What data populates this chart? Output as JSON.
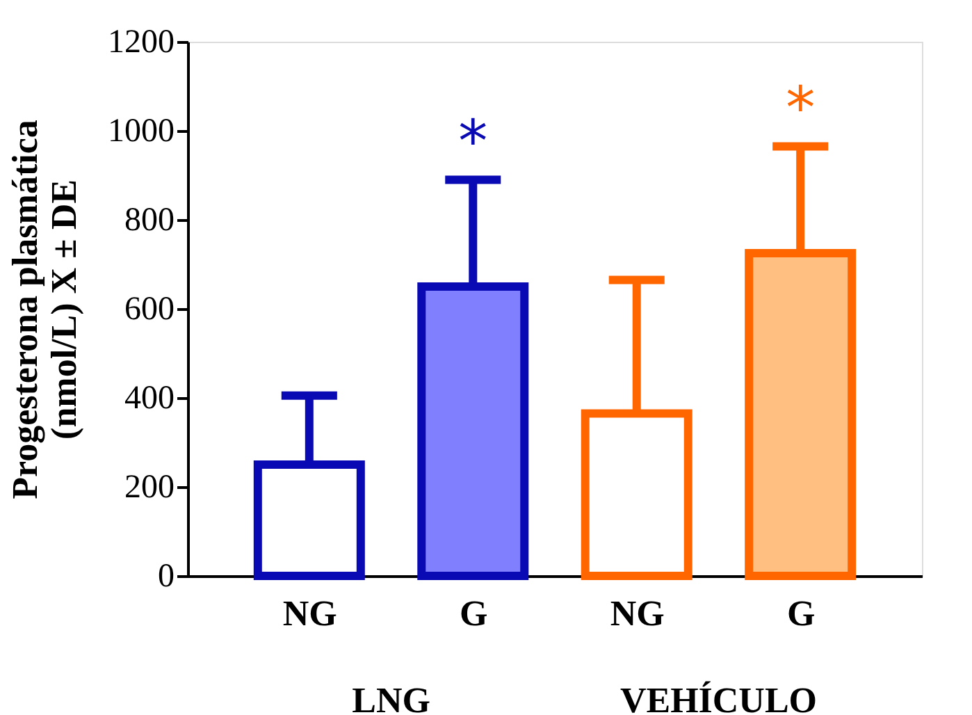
{
  "chart_data": {
    "type": "bar",
    "ylabel": "Progesterona plasmática\n(nmol/L)  X ± DE",
    "categories": [
      "NG",
      "G",
      "NG",
      "G"
    ],
    "series": [
      {
        "color": "#0a0ab4",
        "colors": [
          "#ffffff",
          "#8080ff",
          null,
          null
        ],
        "values": [
          250,
          650,
          null,
          null
        ],
        "errors": [
          [
            250,
            405
          ],
          [
            650,
            890
          ],
          null,
          null
        ],
        "value_labels": [
          null,
          "*",
          null,
          null
        ]
      },
      {
        "color": "#ff6600",
        "colors": [
          null,
          null,
          "#ffffff",
          "#ffbf80"
        ],
        "values": [
          null,
          null,
          365,
          725
        ],
        "errors": [
          null,
          null,
          [
            365,
            665
          ],
          [
            725,
            965
          ]
        ],
        "value_labels": [
          null,
          null,
          null,
          "*"
        ]
      }
    ],
    "annotations": [
      "LNG",
      "VEHÍCULO"
    ],
    "ylim": [
      0,
      1200
    ],
    "yticks": [
      0,
      200,
      400,
      600,
      800,
      1000,
      1200
    ],
    "grid": false
  }
}
